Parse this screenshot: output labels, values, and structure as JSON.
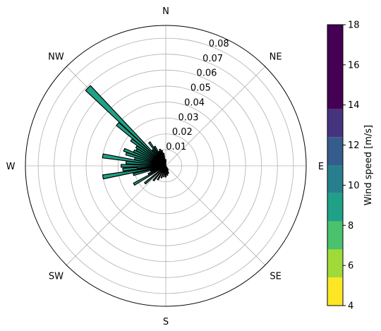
{
  "chart_data": {
    "type": "windrose",
    "directions": [
      "N",
      "NE",
      "E",
      "SE",
      "S",
      "SW",
      "W",
      "NW"
    ],
    "radial_ticks": [
      "0.01",
      "0.02",
      "0.03",
      "0.04",
      "0.05",
      "0.06",
      "0.07",
      "0.08"
    ],
    "radial_max": 0.088,
    "colorbar": {
      "label": "Wind speed [m/s]",
      "ticks": [
        "4",
        "6",
        "8",
        "10",
        "12",
        "14",
        "16",
        "18"
      ],
      "range": [
        4,
        18
      ],
      "bins": [
        {
          "from": 4,
          "to": 5.4,
          "color": "#fde725"
        },
        {
          "from": 5.4,
          "to": 6.8,
          "color": "#a0da39"
        },
        {
          "from": 6.8,
          "to": 8.2,
          "color": "#4ac16d"
        },
        {
          "from": 8.2,
          "to": 9.6,
          "color": "#1fa187"
        },
        {
          "from": 9.6,
          "to": 11.0,
          "color": "#277f8e"
        },
        {
          "from": 11.0,
          "to": 12.4,
          "color": "#365c8d"
        },
        {
          "from": 12.4,
          "to": 13.8,
          "color": "#46337e"
        },
        {
          "from": 13.8,
          "to": 18.0,
          "color": "#440154"
        }
      ]
    },
    "bar_color": "#1fa187",
    "bars": [
      {
        "bearing": 180,
        "value": 0.007
      },
      {
        "bearing": 170,
        "value": 0.006
      },
      {
        "bearing": 160,
        "value": 0.005
      },
      {
        "bearing": 150,
        "value": 0.003
      },
      {
        "bearing": 190,
        "value": 0.007
      },
      {
        "bearing": 200,
        "value": 0.008
      },
      {
        "bearing": 210,
        "value": 0.01
      },
      {
        "bearing": 220,
        "value": 0.012
      },
      {
        "bearing": 230,
        "value": 0.017
      },
      {
        "bearing": 240,
        "value": 0.023
      },
      {
        "bearing": 245,
        "value": 0.012
      },
      {
        "bearing": 250,
        "value": 0.01
      },
      {
        "bearing": 255,
        "value": 0.021
      },
      {
        "bearing": 260,
        "value": 0.04
      },
      {
        "bearing": 265,
        "value": 0.027
      },
      {
        "bearing": 267,
        "value": 0.018
      },
      {
        "bearing": 270,
        "value": 0.028
      },
      {
        "bearing": 275,
        "value": 0.025
      },
      {
        "bearing": 279,
        "value": 0.04
      },
      {
        "bearing": 283,
        "value": 0.02
      },
      {
        "bearing": 287,
        "value": 0.026
      },
      {
        "bearing": 291,
        "value": 0.028
      },
      {
        "bearing": 295,
        "value": 0.022
      },
      {
        "bearing": 299,
        "value": 0.021
      },
      {
        "bearing": 303,
        "value": 0.022
      },
      {
        "bearing": 307,
        "value": 0.027
      },
      {
        "bearing": 311,
        "value": 0.04
      },
      {
        "bearing": 315,
        "value": 0.069
      },
      {
        "bearing": 320,
        "value": 0.013
      },
      {
        "bearing": 325,
        "value": 0.018
      },
      {
        "bearing": 330,
        "value": 0.014
      },
      {
        "bearing": 335,
        "value": 0.01
      },
      {
        "bearing": 340,
        "value": 0.011
      },
      {
        "bearing": 345,
        "value": 0.01
      },
      {
        "bearing": 350,
        "value": 0.008
      },
      {
        "bearing": 0,
        "value": 0.004
      }
    ]
  }
}
